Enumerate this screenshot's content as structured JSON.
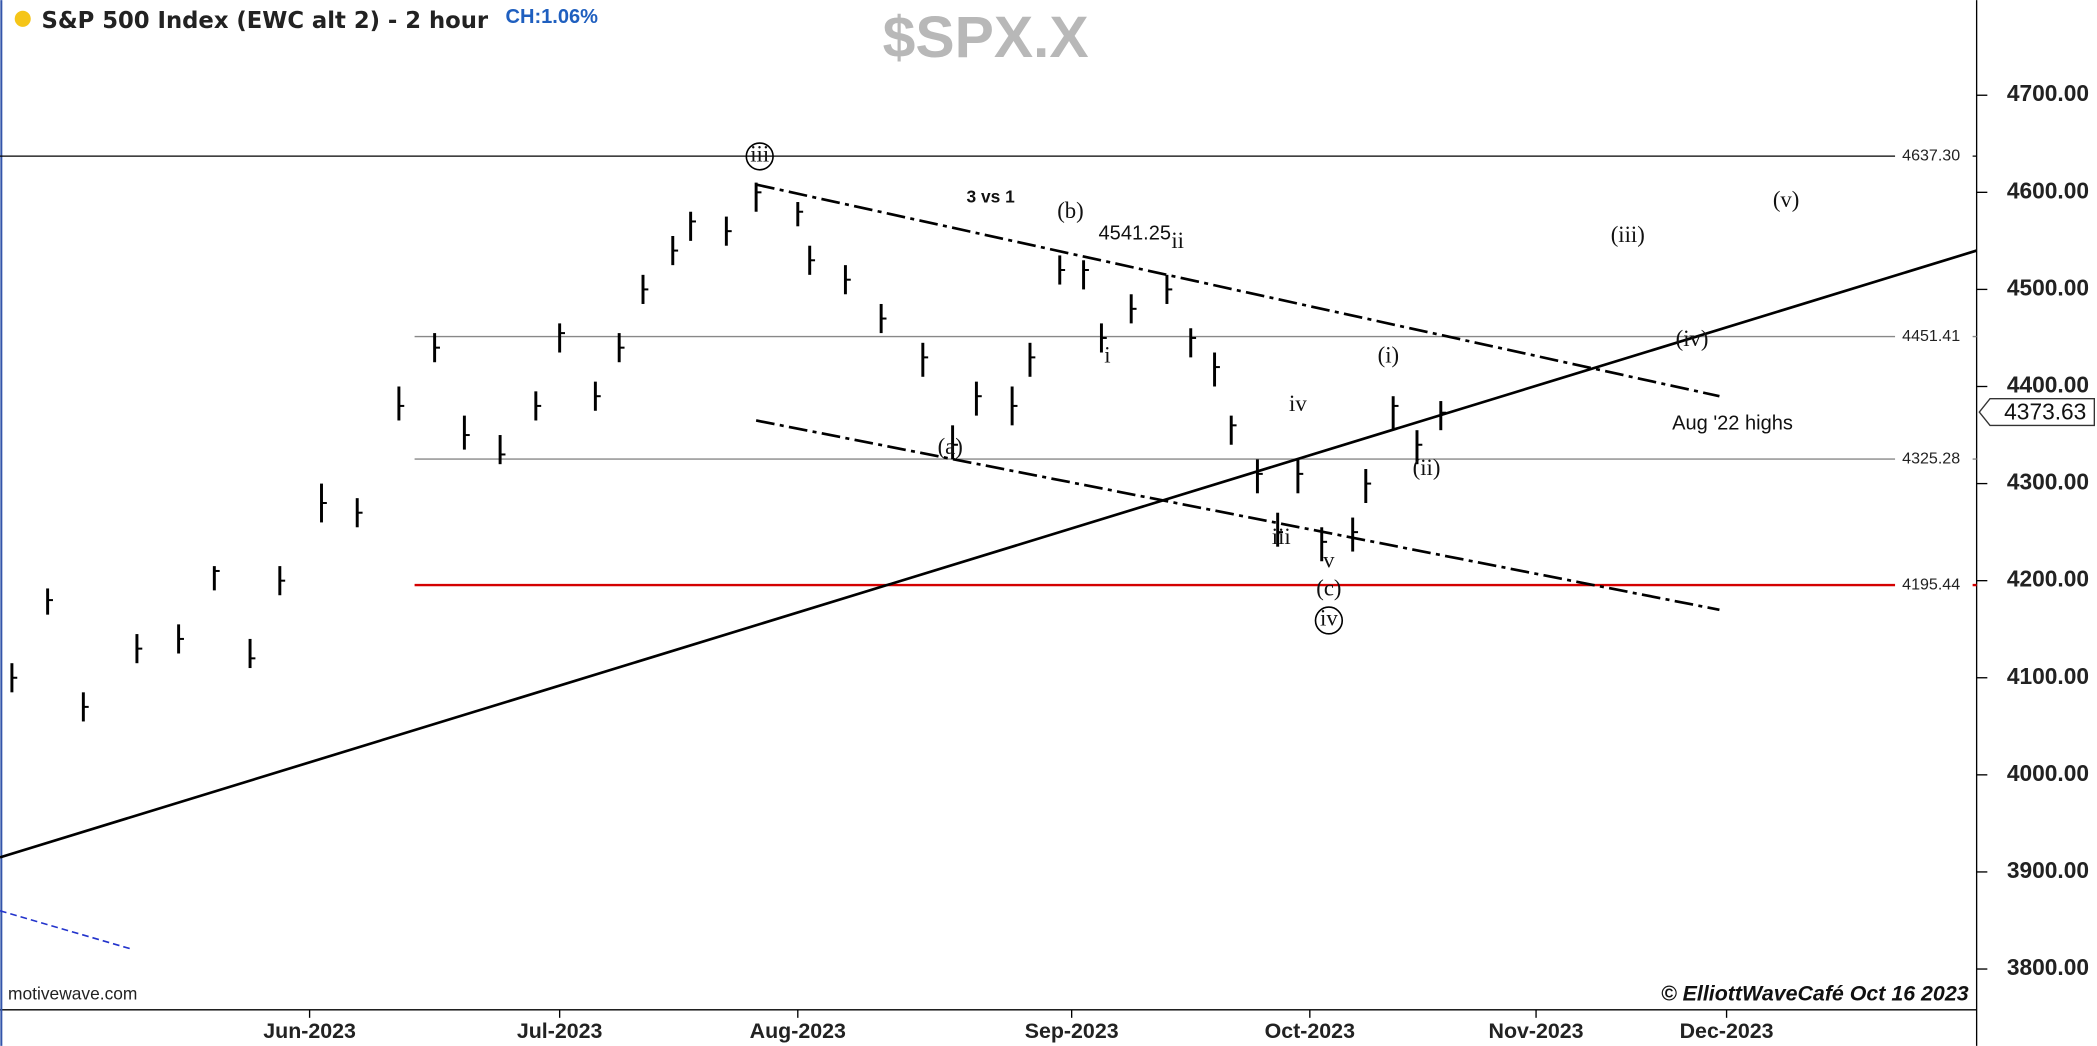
{
  "chart_data": {
    "type": "ohlc",
    "title": "S&P 500 Index (EWC alt 2) - 2 hour",
    "change": "CH:1.06%",
    "symbol": "$SPX.X",
    "source": "motivewave.com",
    "credit": "© ElliottWaveCafé Oct 16 2023",
    "x": [
      -25,
      -22,
      -19,
      -14.5,
      -11,
      -8,
      -5,
      -2.5,
      1,
      4,
      7.5,
      10.5,
      13,
      16,
      19,
      21,
      24,
      26,
      28,
      30.5,
      32,
      35,
      37.5,
      41,
      42,
      45,
      48,
      51.5,
      54,
      56,
      59,
      60.5,
      63,
      65,
      66.5,
      69,
      72,
      74,
      76,
      77.4,
      79.6,
      81.3,
      83,
      85,
      87.6,
      88.7,
      91,
      93,
      95
    ],
    "series": [
      {
        "color": "#000000",
        "high": [
          4115,
          4192,
          4085,
          4145,
          4155,
          4215,
          4140,
          4215,
          4300,
          4285,
          4400,
          4455,
          4370,
          4350,
          4395,
          4465,
          4405,
          4455,
          4515,
          4555,
          4580,
          4575,
          4610,
          4590,
          4545,
          4525,
          4485,
          4445,
          4360,
          4405,
          4400,
          4445,
          4535,
          4530,
          4465,
          4495,
          4515,
          4460,
          4435,
          4370,
          4325,
          4270,
          4325,
          4255,
          4265,
          4315,
          4390,
          4355,
          4385
        ],
        "low": [
          4085,
          4165,
          4055,
          4115,
          4125,
          4190,
          4110,
          4185,
          4260,
          4255,
          4365,
          4425,
          4335,
          4320,
          4365,
          4435,
          4375,
          4425,
          4485,
          4525,
          4550,
          4545,
          4580,
          4565,
          4515,
          4495,
          4455,
          4410,
          4325,
          4370,
          4360,
          4410,
          4505,
          4500,
          4435,
          4465,
          4485,
          4430,
          4400,
          4340,
          4290,
          4235,
          4290,
          4220,
          4230,
          4280,
          4355,
          4320,
          4355
        ],
        "close": [
          4100,
          4180,
          4070,
          4130,
          4140,
          4210,
          4120,
          4200,
          4280,
          4270,
          4380,
          4440,
          4350,
          4330,
          4380,
          4455,
          4390,
          4440,
          4500,
          4540,
          4570,
          4560,
          4600,
          4580,
          4530,
          4510,
          4470,
          4430,
          4340,
          4390,
          4380,
          4430,
          4520,
          4520,
          4450,
          4480,
          4500,
          4450,
          4420,
          4360,
          4310,
          4250,
          4310,
          4240,
          4250,
          4300,
          4380,
          4340,
          4373
        ]
      }
    ],
    "xlim": [
      -26,
      140
    ],
    "xticks": [
      {
        "value": 0,
        "label": "Jun-2023"
      },
      {
        "value": 21,
        "label": "Jul-2023"
      },
      {
        "value": 41,
        "label": "Aug-2023"
      },
      {
        "value": 64,
        "label": "Sep-2023"
      },
      {
        "value": 84,
        "label": "Oct-2023"
      },
      {
        "value": 103,
        "label": "Nov-2023"
      },
      {
        "value": 119,
        "label": "Dec-2023"
      }
    ],
    "ylim": [
      3758,
      4798
    ],
    "yticks": [
      {
        "value": 3800,
        "label": "3800.00"
      },
      {
        "value": 3900,
        "label": "3900.00"
      },
      {
        "value": 4000,
        "label": "4000.00"
      },
      {
        "value": 4100,
        "label": "4100.00"
      },
      {
        "value": 4200,
        "label": "4200.00"
      },
      {
        "value": 4300,
        "label": "4300.00"
      },
      {
        "value": 4400,
        "label": "4400.00"
      },
      {
        "value": 4500,
        "label": "4500.00"
      },
      {
        "value": 4600,
        "label": "4600.00"
      },
      {
        "value": 4700,
        "label": "4700.00"
      }
    ],
    "last": {
      "value": 4373.63,
      "label": "4373.63"
    },
    "levels": [
      {
        "value": 4637.3,
        "label": "4637.30",
        "color": "#000000"
      },
      {
        "value": 4451.41,
        "label": "4451.41",
        "color": "#888888"
      },
      {
        "value": 4325.28,
        "label": "4325.28",
        "color": "#888888"
      },
      {
        "value": 4195.44,
        "label": "4195.44",
        "color": "#d40000"
      }
    ],
    "trendlines": [
      {
        "x": [
          -26,
          140
        ],
        "y": [
          3915,
          4540
        ],
        "color": "#000000",
        "style": "solid"
      },
      {
        "x": [
          37.5,
          118.4
        ],
        "y": [
          4608,
          4390
        ],
        "color": "#000000",
        "style": "dashdot"
      },
      {
        "x": [
          37.5,
          118.4
        ],
        "y": [
          4365,
          4170
        ],
        "color": "#000000",
        "style": "dashdot"
      },
      {
        "x": [
          -26,
          -14.8
        ],
        "y": [
          3860,
          3820
        ],
        "color": "#2233cc",
        "style": "dashed"
      }
    ],
    "annotations": [
      {
        "text": "iii",
        "x": 37.8,
        "y": 4637,
        "circled": true
      },
      {
        "text": "3 vs 1",
        "x": 57.2,
        "y": 4594,
        "bold": true
      },
      {
        "text": "(b)",
        "x": 63.9,
        "y": 4579
      },
      {
        "text": "4541.25",
        "x": 69.3,
        "y": 4557,
        "sans": true
      },
      {
        "text": "ii",
        "x": 72.9,
        "y": 4548
      },
      {
        "text": "(a)",
        "x": 53.8,
        "y": 4336
      },
      {
        "text": "i",
        "x": 67,
        "y": 4430
      },
      {
        "text": "iv",
        "x": 83,
        "y": 4380
      },
      {
        "text": "(i)",
        "x": 90.6,
        "y": 4430
      },
      {
        "text": "(ii)",
        "x": 93.8,
        "y": 4314
      },
      {
        "text": "iii",
        "x": 81.6,
        "y": 4243
      },
      {
        "text": "v",
        "x": 85.6,
        "y": 4219
      },
      {
        "text": "(c)",
        "x": 85.6,
        "y": 4190
      },
      {
        "text": "iv",
        "x": 85.6,
        "y": 4159,
        "circled": true
      },
      {
        "text": "(iii)",
        "x": 110.7,
        "y": 4554
      },
      {
        "text": "(v)",
        "x": 124,
        "y": 4590
      },
      {
        "text": "(iv)",
        "x": 116.1,
        "y": 4447
      },
      {
        "text": "Aug '22 highs",
        "x": 119.5,
        "y": 4361,
        "sans": true
      }
    ]
  }
}
